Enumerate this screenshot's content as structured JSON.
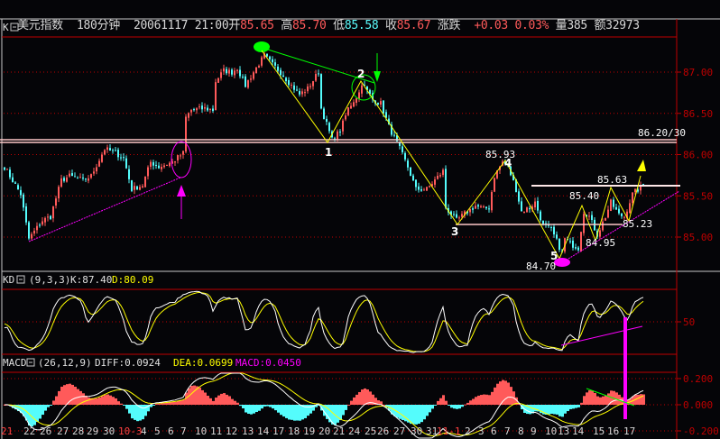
{
  "header": {
    "name": "美元指数",
    "period": "180分钟",
    "datetime": "20061117 21:00",
    "open_label": "开",
    "open": "85.65",
    "high_label": "高",
    "high": "85.70",
    "low_label": "低",
    "low": "85.58",
    "close_label": "收",
    "close": "85.67",
    "change_label": "涨跌",
    "change": "+0.03",
    "change_pct": "0.03%",
    "volume": "量385",
    "amount": "额32973"
  },
  "panels": {
    "k": {
      "label": "K"
    },
    "kd": {
      "label": "KD",
      "params": "(9,3,3)",
      "k": "K:87.40",
      "d": "D:80.09"
    },
    "macd": {
      "label": "MACD",
      "params": "(26,12,9)",
      "diff": "DIFF:0.0924",
      "dea": "DEA:0.0699",
      "macd": "MACD:0.0450"
    }
  },
  "colors": {
    "up": "#ff5a5a",
    "down": "#54fcfc",
    "k_line": "#ffffff",
    "d_line": "#ffff00",
    "axis": "#c00000",
    "annotation_magenta": "#ff00ff",
    "annotation_green": "#00ff00",
    "zigzag": "#ffff00"
  },
  "chart_data": [
    {
      "type": "candlestick",
      "title": "",
      "y_ticks": [
        "87.00",
        "86.50",
        "86.00",
        "85.50",
        "85.00"
      ],
      "ylim": [
        84.6,
        87.45
      ],
      "grid": true,
      "x_tick_labels": [
        "21",
        "22",
        "26",
        "27",
        "28",
        "29",
        "30",
        "10-3",
        "4",
        "5",
        "6",
        "7",
        "10",
        "11",
        "12",
        "13",
        "14",
        "17",
        "18",
        "19",
        "20",
        "21",
        "24",
        "25",
        "26",
        "27",
        "30",
        "31",
        "11-1",
        "2",
        "3",
        "6",
        "7",
        "8",
        "9",
        "10",
        "13",
        "14",
        "15",
        "16",
        "17"
      ],
      "close_path": [
        [
          0,
          85.85
        ],
        [
          2,
          85.74
        ],
        [
          6,
          85.52
        ],
        [
          9,
          84.98
        ],
        [
          14,
          85.2
        ],
        [
          17,
          85.25
        ],
        [
          21,
          85.69
        ],
        [
          24,
          85.74
        ],
        [
          29,
          85.69
        ],
        [
          32,
          85.74
        ],
        [
          37,
          86.07
        ],
        [
          41,
          86.02
        ],
        [
          44,
          85.96
        ],
        [
          47,
          85.58
        ],
        [
          51,
          85.63
        ],
        [
          54,
          85.91
        ],
        [
          57,
          85.85
        ],
        [
          62,
          85.91
        ],
        [
          66,
          86.02
        ],
        [
          67,
          86.45
        ],
        [
          69,
          86.54
        ],
        [
          74,
          86.56
        ],
        [
          77,
          86.54
        ],
        [
          78,
          86.89
        ],
        [
          81,
          87.02
        ],
        [
          84,
          87.0
        ],
        [
          86,
          87.05
        ],
        [
          89,
          86.84
        ],
        [
          92,
          87.0
        ],
        [
          96,
          87.2
        ],
        [
          99,
          87.09
        ],
        [
          102,
          87.0
        ],
        [
          106,
          86.84
        ],
        [
          109,
          86.73
        ],
        [
          112,
          86.8
        ],
        [
          116,
          87.0
        ],
        [
          117,
          86.56
        ],
        [
          121,
          86.18
        ],
        [
          124,
          86.29
        ],
        [
          127,
          86.56
        ],
        [
          131,
          86.75
        ],
        [
          132,
          86.87
        ],
        [
          136,
          86.67
        ],
        [
          139,
          86.62
        ],
        [
          142,
          86.34
        ],
        [
          146,
          86.07
        ],
        [
          149,
          85.85
        ],
        [
          152,
          85.58
        ],
        [
          156,
          85.58
        ],
        [
          159,
          85.69
        ],
        [
          162,
          85.8
        ],
        [
          163,
          85.36
        ],
        [
          167,
          85.2
        ],
        [
          171,
          85.31
        ],
        [
          174,
          85.38
        ],
        [
          177,
          85.34
        ],
        [
          179,
          85.36
        ],
        [
          181,
          85.74
        ],
        [
          184,
          85.91
        ],
        [
          186,
          85.85
        ],
        [
          189,
          85.58
        ],
        [
          191,
          85.31
        ],
        [
          194,
          85.36
        ],
        [
          196,
          85.42
        ],
        [
          199,
          85.14
        ],
        [
          202,
          85.09
        ],
        [
          206,
          84.81
        ],
        [
          207,
          84.98
        ],
        [
          209,
          84.92
        ],
        [
          212,
          84.87
        ],
        [
          214,
          85.31
        ],
        [
          216,
          85.25
        ],
        [
          219,
          85.03
        ],
        [
          222,
          85.25
        ],
        [
          224,
          85.42
        ],
        [
          227,
          85.27
        ],
        [
          229,
          85.25
        ],
        [
          232,
          85.52
        ],
        [
          236,
          85.63
        ]
      ],
      "annotations": {
        "wave_labels": [
          "1",
          "2",
          "3",
          "4",
          "5"
        ],
        "price_labels": {
          "p4": "85.93",
          "p5": "84.70",
          "p_a": "85.40",
          "p_b": "85.63",
          "p_c": "84.95",
          "p_d": "85.23",
          "resistance": "86.20/30"
        }
      }
    },
    {
      "type": "line",
      "name": "KD",
      "series": [
        {
          "name": "K"
        },
        {
          "name": "D"
        }
      ],
      "y_ticks": [
        "50"
      ],
      "ylim": [
        0,
        100
      ]
    },
    {
      "type": "bar+line",
      "name": "MACD",
      "series": [
        {
          "name": "DIFF"
        },
        {
          "name": "DEA"
        },
        {
          "name": "MACD"
        }
      ],
      "y_ticks": [
        "0.200",
        "0.000",
        "-0.200"
      ],
      "ylim": [
        -0.25,
        0.25
      ]
    }
  ]
}
